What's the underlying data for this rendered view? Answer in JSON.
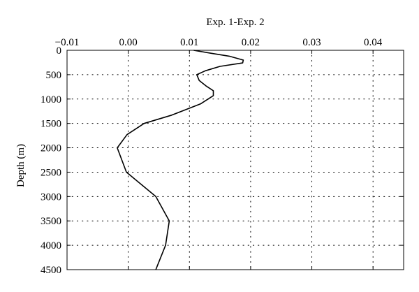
{
  "chart_data": {
    "type": "line",
    "title": "",
    "xlabel": "Exp. 1-Exp. 2",
    "ylabel": "Depth (m)",
    "xlim": [
      -0.01,
      0.045
    ],
    "ylim": [
      0,
      4500
    ],
    "y_inverted": true,
    "x_axis_position": "top",
    "grid": "dotted",
    "x_ticks": [
      -0.01,
      0.0,
      0.01,
      0.02,
      0.03,
      0.04
    ],
    "x_tick_labels": [
      "−0.01",
      "0.00",
      "0.01",
      "0.02",
      "0.03",
      "0.04"
    ],
    "y_ticks": [
      0,
      500,
      1000,
      1500,
      2000,
      2500,
      3000,
      3500,
      4000,
      4500
    ],
    "y_tick_labels": [
      "0",
      "500",
      "1000",
      "1500",
      "2000",
      "2500",
      "3000",
      "3500",
      "4000",
      "4500"
    ],
    "series": [
      {
        "color": "#000000",
        "x": [
          0.0107,
          0.0135,
          0.0165,
          0.0188,
          0.0187,
          0.015,
          0.0126,
          0.0112,
          0.0116,
          0.0127,
          0.0139,
          0.0139,
          0.0118,
          0.0071,
          0.0026,
          -0.0002,
          -0.0018,
          -0.0003,
          0.0045,
          0.0067,
          0.0061,
          0.0045
        ],
        "y": [
          0,
          60,
          120,
          200,
          260,
          330,
          420,
          500,
          620,
          730,
          830,
          930,
          1100,
          1330,
          1500,
          1730,
          2000,
          2500,
          3000,
          3500,
          4000,
          4500
        ]
      }
    ]
  }
}
